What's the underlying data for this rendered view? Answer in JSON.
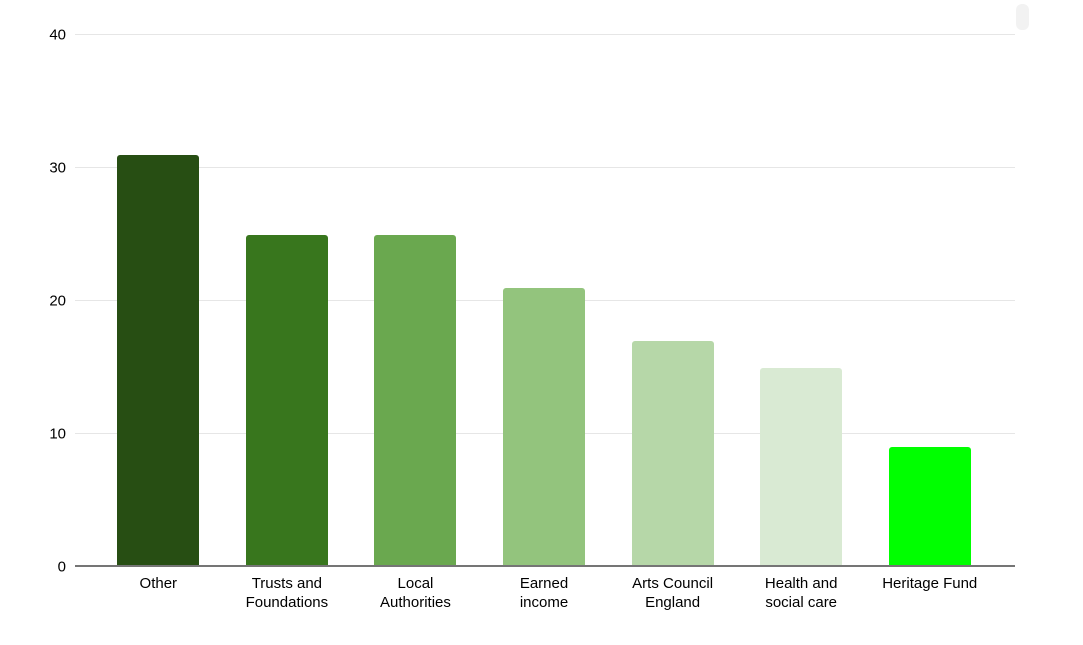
{
  "app": {
    "background_color": "#ffffff"
  },
  "chart_data": {
    "type": "bar",
    "title": "",
    "xlabel": "",
    "ylabel": "",
    "categories": [
      "Other",
      "Trusts and Foundations",
      "Local Authorities",
      "Earned income",
      "Arts Council England",
      "Health and social care",
      "Heritage Fund"
    ],
    "values": [
      31,
      25,
      25,
      21,
      17,
      15,
      9
    ],
    "bar_colors": [
      "#274e13",
      "#38761d",
      "#6aa84f",
      "#93c47d",
      "#b6d7a8",
      "#d9ead3",
      "#00ff00"
    ],
    "ylim": [
      0,
      40
    ],
    "yticks": [
      0,
      10,
      20,
      30,
      40
    ],
    "grid": true,
    "legend_position": "none",
    "gridline_color": "#e6e6e6",
    "axis_line_color": "#757575",
    "tick_label_color": "#000000"
  },
  "ui": {
    "menu_ghost_color": "#f2f2f2"
  }
}
